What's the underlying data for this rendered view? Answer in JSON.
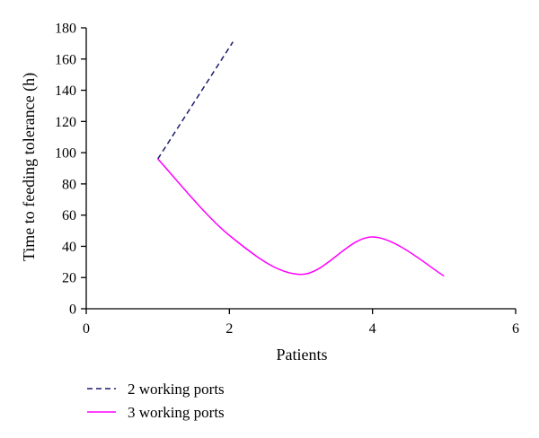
{
  "chart_data": {
    "type": "line",
    "title": "",
    "xlabel": "Patients",
    "ylabel": "Time to feeding tolerance (h)",
    "xlim": [
      0,
      6
    ],
    "ylim": [
      0,
      180
    ],
    "x_ticks": [
      0,
      2,
      4,
      6
    ],
    "y_ticks": [
      0,
      20,
      40,
      60,
      80,
      100,
      120,
      140,
      160,
      180
    ],
    "grid": false,
    "legend_position": "bottom-left",
    "series": [
      {
        "name": "2 working ports",
        "color": "#1a1a6e",
        "style": "dashed",
        "x": [
          1,
          2.05
        ],
        "y": [
          96,
          171
        ]
      },
      {
        "name": "3 working ports",
        "color": "#ff00ff",
        "style": "solid",
        "smooth": true,
        "x": [
          1,
          2,
          3,
          4,
          5
        ],
        "y": [
          96,
          47,
          22,
          46,
          21
        ]
      }
    ]
  }
}
